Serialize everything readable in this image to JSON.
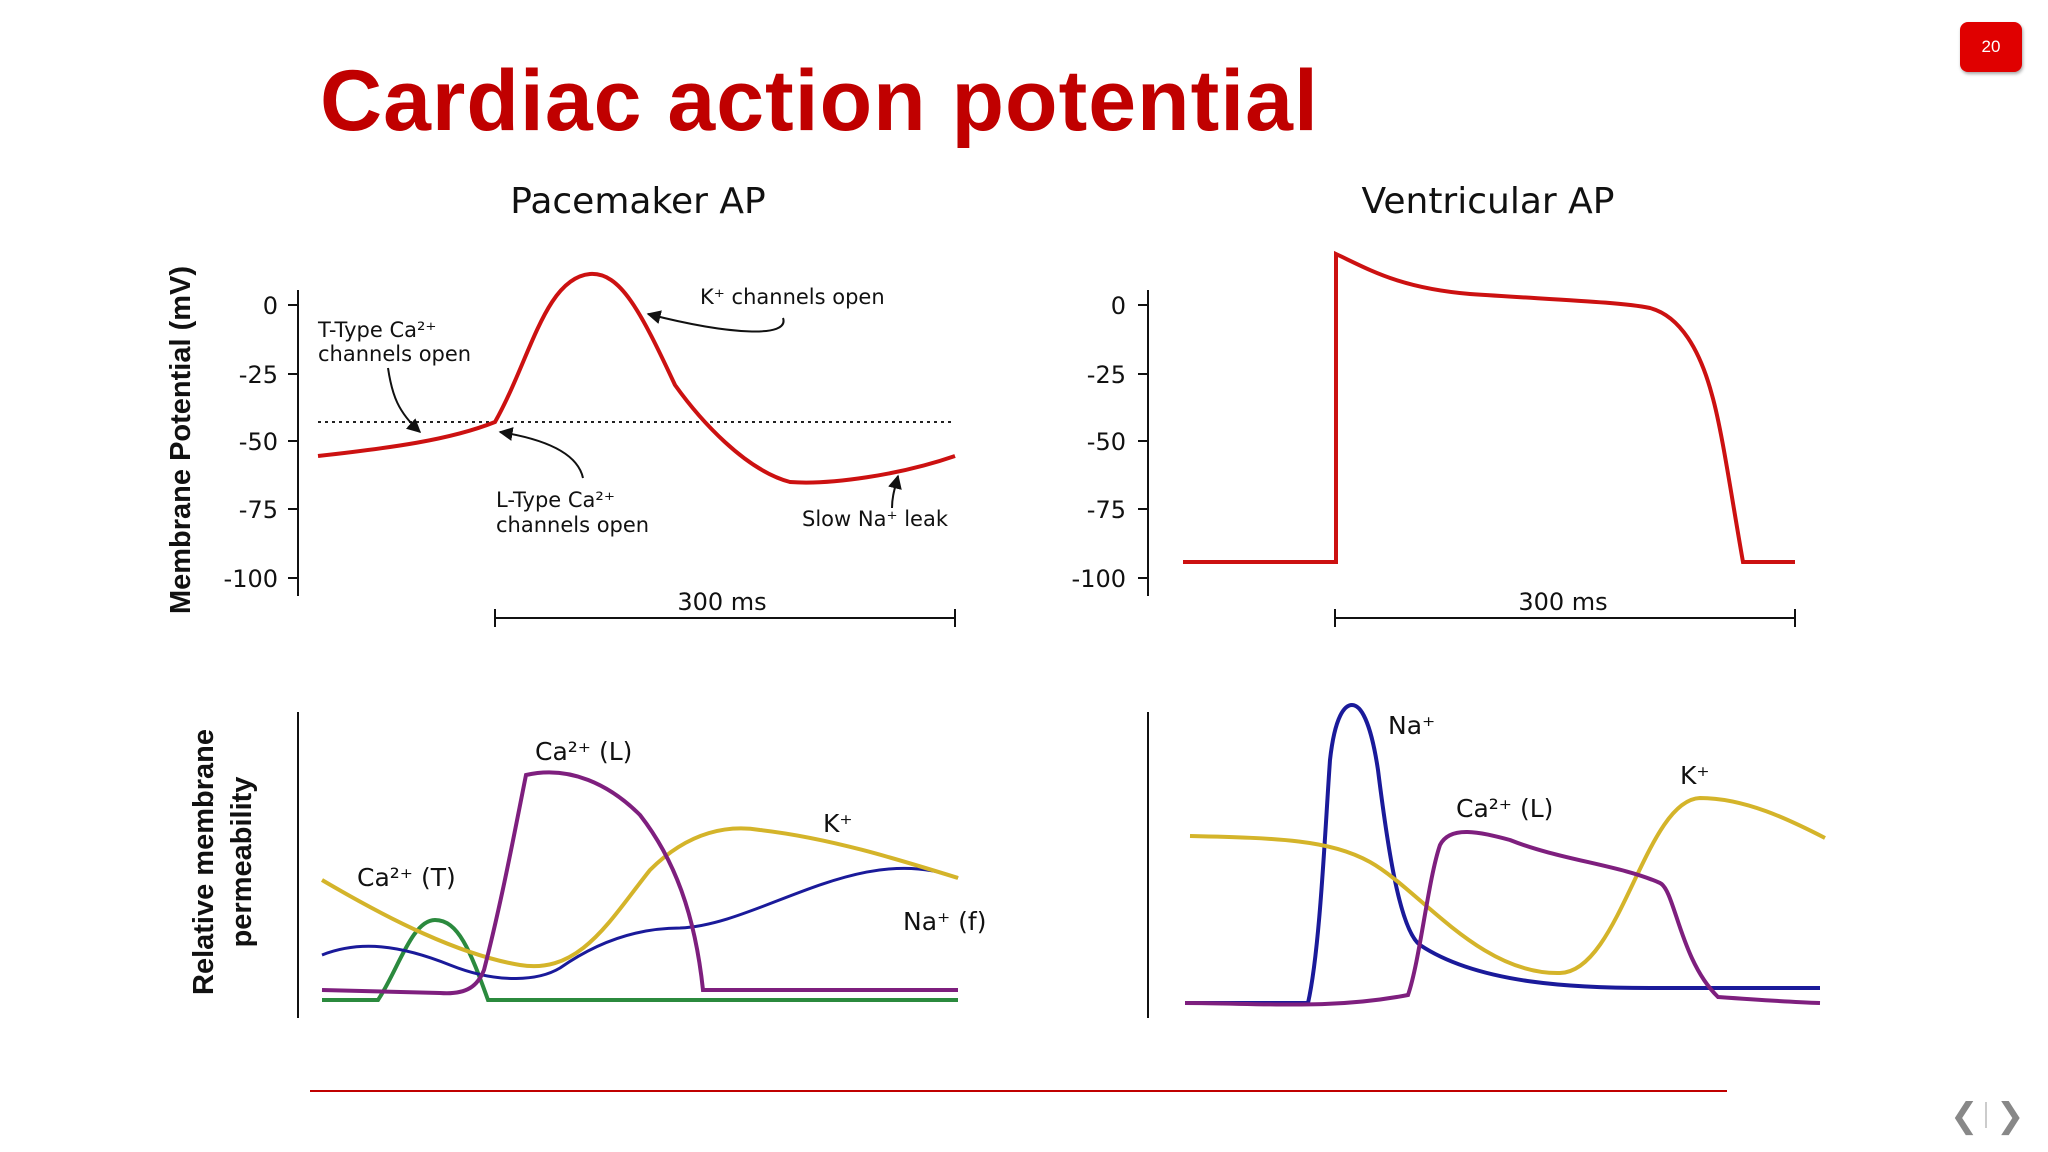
{
  "slide": {
    "title": "Cardiac action potential",
    "page_number": "20",
    "nav": {
      "prev": "❮",
      "next": "❯"
    }
  },
  "colors": {
    "title": "#c00000",
    "membrane_potential": "#cc1111",
    "na": "#1a1a9a",
    "ca_l": "#7e1f7e",
    "k": "#d4b42a",
    "ca_t": "#2b8a3e",
    "footer_line": "#c00000"
  },
  "pacemaker": {
    "title": "Pacemaker AP",
    "ylabel": "Membrane Potential (mV)",
    "yticks": [
      "0",
      "-25",
      "-50",
      "-75",
      "-100"
    ],
    "scale_bar": "300 ms",
    "annotations": {
      "t_type": [
        "T-Type Ca²⁺",
        "channels open"
      ],
      "l_type": [
        "L-Type Ca²⁺",
        "channels open"
      ],
      "k_open": "K⁺ channels open",
      "na_leak": "Slow Na⁺ leak"
    },
    "permeability_ylabel": [
      "Relative membrane",
      "permeability"
    ],
    "series_labels": {
      "ca_l": "Ca²⁺ (L)",
      "ca_t": "Ca²⁺ (T)",
      "k": "K⁺",
      "na_f": "Na⁺ (f)"
    }
  },
  "ventricular": {
    "title": "Ventricular AP",
    "yticks": [
      "0",
      "-25",
      "-50",
      "-75",
      "-100"
    ],
    "scale_bar": "300 ms",
    "series_labels": {
      "na": "Na⁺",
      "ca_l": "Ca²⁺ (L)",
      "k": "K⁺"
    }
  }
}
